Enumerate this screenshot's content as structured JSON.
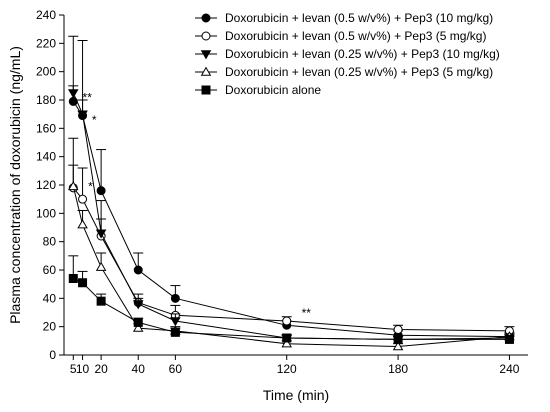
{
  "chart_data": {
    "type": "line",
    "title": "",
    "xlabel": "Time (min)",
    "ylabel": "Plasma concentration of doxorubicin (ng/mL)",
    "xlim": [
      0,
      250
    ],
    "ylim": [
      0,
      240
    ],
    "x_ticks": [
      5,
      10,
      20,
      40,
      60,
      120,
      180,
      240
    ],
    "y_ticks": [
      0,
      20,
      40,
      60,
      80,
      100,
      120,
      140,
      160,
      180,
      200,
      220,
      240
    ],
    "legend_position": "top-right",
    "series": [
      {
        "name": "Doxorubicin + levan (0.5 w/v%) + Pep3 (10 mg/kg)",
        "marker": "circle-filled",
        "x": [
          5,
          10,
          20,
          40,
          60,
          120,
          180,
          240
        ],
        "y": [
          179,
          169,
          116,
          60,
          40,
          21,
          14,
          13
        ],
        "err": [
          46,
          53,
          29,
          12,
          9,
          3,
          3,
          3
        ]
      },
      {
        "name": "Doxorubicin + levan (0.5 w/v%) + Pep3 (5 mg/kg)",
        "marker": "circle-open",
        "x": [
          5,
          10,
          20,
          40,
          60,
          120,
          180,
          240
        ],
        "y": [
          118,
          110,
          84,
          37,
          28,
          24,
          18,
          17
        ],
        "err": [
          35,
          22,
          25,
          6,
          7,
          3,
          3,
          3
        ]
      },
      {
        "name": "Doxorubicin + levan (0.25 w/v%) + Pep3 (10 mg/kg)",
        "marker": "triangle-down-filled",
        "x": [
          5,
          10,
          20,
          40,
          60,
          120,
          180,
          240
        ],
        "y": [
          185,
          170,
          86,
          36,
          24,
          12,
          11,
          12
        ],
        "err": [
          5,
          10,
          10,
          4,
          5,
          2,
          2,
          2
        ]
      },
      {
        "name": "Doxorubicin + levan (0.25 w/v%) + Pep3 (5 mg/kg)",
        "marker": "triangle-up-open",
        "x": [
          5,
          10,
          20,
          40,
          60,
          120,
          180,
          240
        ],
        "y": [
          119,
          92,
          62,
          19,
          17,
          8,
          6,
          13
        ],
        "err": [
          15,
          10,
          10,
          3,
          3,
          2,
          2,
          2
        ]
      },
      {
        "name": "Doxorubicin alone",
        "marker": "square-filled",
        "x": [
          5,
          10,
          20,
          40,
          60,
          120,
          180,
          240
        ],
        "y": [
          54,
          51,
          38,
          23,
          16,
          12,
          11,
          11
        ],
        "err": [
          16,
          8,
          5,
          3,
          3,
          2,
          2,
          2
        ]
      }
    ],
    "annotations": [
      {
        "text": "**",
        "x": 10,
        "y": 179
      },
      {
        "text": "*",
        "x": 15,
        "y": 163
      },
      {
        "text": "*",
        "x": 13,
        "y": 116
      },
      {
        "text": "**",
        "x": 128,
        "y": 27
      }
    ]
  }
}
